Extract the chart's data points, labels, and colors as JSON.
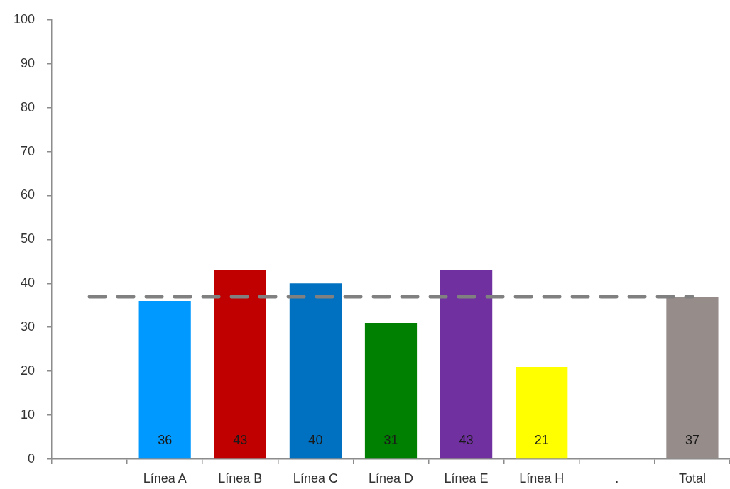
{
  "chart_data": {
    "type": "bar",
    "categories": [
      null,
      "Línea A",
      "Línea B",
      "Línea C",
      "Línea D",
      "Línea E",
      "Línea H",
      ".",
      "Total"
    ],
    "values": [
      null,
      36,
      43,
      40,
      31,
      43,
      21,
      null,
      37
    ],
    "colors": [
      "#000000",
      "#0099ff",
      "#c00000",
      "#0070c0",
      "#008000",
      "#7030a0",
      "#ffff00",
      "#000000",
      "#968c8a"
    ],
    "ylim": [
      0,
      100
    ],
    "yticks": [
      0,
      10,
      20,
      30,
      40,
      50,
      60,
      70,
      80,
      90,
      100
    ],
    "data_labels": true,
    "ref_lines": [
      {
        "axis": "y",
        "value": 37,
        "color": "#808080",
        "line_style": "dashed"
      }
    ]
  }
}
